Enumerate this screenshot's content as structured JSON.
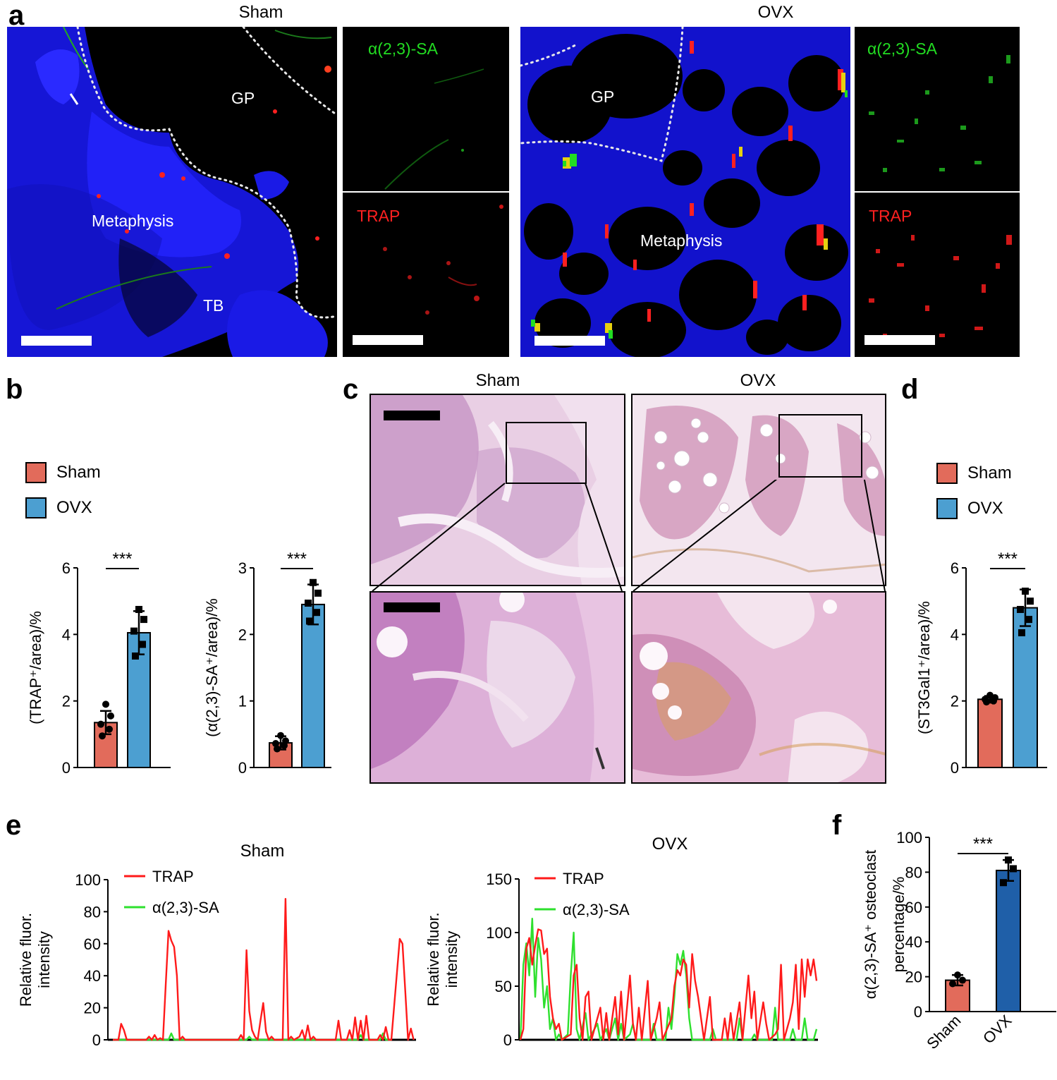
{
  "panel_labels": {
    "a": "a",
    "b": "b",
    "c": "c",
    "d": "d",
    "e": "e",
    "f": "f"
  },
  "panel_a": {
    "sham_title": "Sham",
    "ovx_title": "OVX",
    "sham_overlay": {
      "gp": "GP",
      "metaphysis": "Metaphysis",
      "tb": "TB"
    },
    "ovx_overlay": {
      "gp": "GP",
      "metaphysis": "Metaphysis"
    },
    "channel_sa": "α(2,3)-SA",
    "channel_trap": "TRAP",
    "colors": {
      "dapi": "#1a1aff",
      "sa": "#22dd22",
      "trap": "#ff2020",
      "scalebar": "#ffffff"
    }
  },
  "panel_c": {
    "sham_title": "Sham",
    "ovx_title": "OVX"
  },
  "legend_b": {
    "sham": "Sham",
    "ovx": "OVX"
  },
  "legend_d": {
    "sham": "Sham",
    "ovx": "OVX"
  },
  "colors": {
    "sham_bar": "#e26b5b",
    "ovx_bar": "#4c9fd1",
    "ovx_bar_f": "#1f5fa8",
    "trap_line": "#ff1a1a",
    "sa_line": "#2ee02e"
  },
  "chart_data": [
    {
      "id": "b1",
      "type": "bar",
      "categories": [
        "Sham",
        "OVX"
      ],
      "values": [
        1.35,
        4.05
      ],
      "errors": [
        0.35,
        0.65
      ],
      "points": [
        [
          1.9,
          1.55,
          1.3,
          1.15,
          0.95
        ],
        [
          4.75,
          4.45,
          4.1,
          3.7,
          3.35
        ]
      ],
      "ylabel": "(TRAP⁺/area)/%",
      "ylim": [
        0,
        6
      ],
      "yticks": [
        "0",
        "2",
        "4",
        "6"
      ],
      "significance": "***"
    },
    {
      "id": "b2",
      "type": "bar",
      "categories": [
        "Sham",
        "OVX"
      ],
      "values": [
        0.37,
        2.45
      ],
      "errors": [
        0.1,
        0.3
      ],
      "points": [
        [
          0.48,
          0.4,
          0.36,
          0.33,
          0.28
        ],
        [
          2.78,
          2.62,
          2.47,
          2.33,
          2.2
        ]
      ],
      "ylabel": "(α(2,3)-SA⁺/area)/%",
      "ylim": [
        0,
        3
      ],
      "yticks": [
        "0",
        "1",
        "2",
        "3"
      ],
      "significance": "***"
    },
    {
      "id": "d",
      "type": "bar",
      "categories": [
        "Sham",
        "OVX"
      ],
      "values": [
        2.05,
        4.8
      ],
      "errors": [
        0.1,
        0.55
      ],
      "points": [
        [
          2.17,
          2.1,
          2.05,
          2.0,
          1.97
        ],
        [
          5.3,
          5.0,
          4.75,
          4.45,
          4.05
        ]
      ],
      "ylabel": "(ST3Gal1⁺/area)/%",
      "ylim": [
        0,
        6
      ],
      "yticks": [
        "0",
        "2",
        "4",
        "6"
      ],
      "significance": "***"
    },
    {
      "id": "e_sham",
      "type": "line",
      "title": "Sham",
      "ylabel": "Relative fluor. intensity",
      "ylim": [
        0,
        100
      ],
      "yticks": [
        "0",
        "20",
        "40",
        "60",
        "80",
        "100"
      ],
      "xlim": [
        0,
        100
      ],
      "series": [
        {
          "name": "TRAP",
          "points": [
            [
              0,
              0
            ],
            [
              2,
              0
            ],
            [
              3,
              10
            ],
            [
              4,
              6
            ],
            [
              5,
              0
            ],
            [
              12,
              0
            ],
            [
              13,
              2
            ],
            [
              14,
              0
            ],
            [
              15,
              3
            ],
            [
              16,
              0
            ],
            [
              17,
              1
            ],
            [
              18,
              0
            ],
            [
              19,
              35
            ],
            [
              20,
              68
            ],
            [
              21,
              62
            ],
            [
              22,
              58
            ],
            [
              23,
              40
            ],
            [
              24,
              0
            ],
            [
              25,
              2
            ],
            [
              26,
              0
            ],
            [
              45,
              0
            ],
            [
              46,
              3
            ],
            [
              47,
              0
            ],
            [
              48,
              56
            ],
            [
              49,
              18
            ],
            [
              50,
              6
            ],
            [
              51,
              2
            ],
            [
              52,
              0
            ],
            [
              53,
              12
            ],
            [
              54,
              23
            ],
            [
              55,
              5
            ],
            [
              56,
              0
            ],
            [
              57,
              2
            ],
            [
              58,
              0
            ],
            [
              61,
              0
            ],
            [
              62,
              88
            ],
            [
              63,
              0
            ],
            [
              64,
              2
            ],
            [
              65,
              0
            ],
            [
              67,
              2
            ],
            [
              68,
              6
            ],
            [
              69,
              0
            ],
            [
              70,
              9
            ],
            [
              71,
              0
            ],
            [
              72,
              2
            ],
            [
              73,
              0
            ],
            [
              80,
              0
            ],
            [
              81,
              12
            ],
            [
              82,
              0
            ],
            [
              84,
              0
            ],
            [
              85,
              6
            ],
            [
              86,
              0
            ],
            [
              87,
              14
            ],
            [
              88,
              0
            ],
            [
              89,
              12
            ],
            [
              90,
              0
            ],
            [
              91,
              15
            ],
            [
              92,
              0
            ],
            [
              95,
              0
            ],
            [
              96,
              3
            ],
            [
              97,
              0
            ],
            [
              98,
              8
            ],
            [
              99,
              0
            ],
            [
              100,
              0
            ]
          ]
        },
        {
          "name": "α(2,3)-SA",
          "points": [
            [
              0,
              0
            ],
            [
              20,
              0
            ],
            [
              21,
              4
            ],
            [
              22,
              0
            ],
            [
              48,
              0
            ],
            [
              49,
              2
            ],
            [
              50,
              0
            ],
            [
              88,
              0
            ],
            [
              89,
              3
            ],
            [
              90,
              0
            ],
            [
              96,
              0
            ],
            [
              97,
              4
            ],
            [
              98,
              0
            ],
            [
              100,
              0
            ]
          ]
        }
      ],
      "extra_points": [
        [
          103,
          63
        ],
        [
          104,
          60
        ],
        [
          105,
          30
        ],
        [
          106,
          0
        ],
        [
          107,
          7
        ],
        [
          108,
          0
        ]
      ]
    },
    {
      "id": "e_ovx",
      "type": "line",
      "title": "OVX",
      "ylabel": "Relative fluor. intensity",
      "ylim": [
        0,
        150
      ],
      "yticks": [
        "0",
        "50",
        "100",
        "150"
      ],
      "xlim": [
        0,
        100
      ],
      "series": [
        {
          "name": "TRAP",
          "points": [
            [
              0,
              0
            ],
            [
              1,
              10
            ],
            [
              2,
              85
            ],
            [
              3,
              95
            ],
            [
              4,
              70
            ],
            [
              5,
              88
            ],
            [
              6,
              103
            ],
            [
              7,
              102
            ],
            [
              8,
              80
            ],
            [
              9,
              85
            ],
            [
              10,
              40
            ],
            [
              11,
              20
            ],
            [
              12,
              10
            ],
            [
              13,
              15
            ],
            [
              14,
              0
            ],
            [
              17,
              5
            ],
            [
              18,
              60
            ],
            [
              19,
              70
            ],
            [
              20,
              20
            ],
            [
              21,
              0
            ],
            [
              22,
              40
            ],
            [
              23,
              45
            ],
            [
              24,
              0
            ],
            [
              26,
              20
            ],
            [
              27,
              30
            ],
            [
              28,
              0
            ],
            [
              29,
              25
            ],
            [
              30,
              0
            ],
            [
              32,
              40
            ],
            [
              33,
              5
            ],
            [
              34,
              45
            ],
            [
              35,
              0
            ],
            [
              37,
              60
            ],
            [
              38,
              15
            ],
            [
              39,
              0
            ],
            [
              40,
              30
            ],
            [
              41,
              0
            ],
            [
              43,
              55
            ],
            [
              44,
              0
            ],
            [
              46,
              20
            ],
            [
              47,
              35
            ],
            [
              48,
              0
            ],
            [
              51,
              20
            ],
            [
              52,
              50
            ],
            [
              53,
              65
            ],
            [
              54,
              60
            ],
            [
              55,
              75
            ],
            [
              56,
              70
            ],
            [
              57,
              30
            ],
            [
              58,
              80
            ],
            [
              59,
              55
            ],
            [
              60,
              40
            ],
            [
              61,
              20
            ],
            [
              62,
              0
            ],
            [
              64,
              40
            ],
            [
              65,
              0
            ],
            [
              68,
              0
            ],
            [
              69,
              20
            ],
            [
              70,
              0
            ],
            [
              71,
              25
            ],
            [
              72,
              0
            ],
            [
              74,
              35
            ],
            [
              75,
              0
            ],
            [
              77,
              60
            ],
            [
              78,
              20
            ],
            [
              79,
              45
            ],
            [
              80,
              0
            ],
            [
              82,
              35
            ],
            [
              83,
              15
            ],
            [
              84,
              0
            ],
            [
              86,
              5
            ],
            [
              87,
              10
            ],
            [
              88,
              70
            ],
            [
              89,
              0
            ],
            [
              91,
              20
            ],
            [
              92,
              35
            ],
            [
              93,
              70
            ],
            [
              94,
              10
            ],
            [
              95,
              75
            ],
            [
              96,
              40
            ],
            [
              97,
              75
            ],
            [
              98,
              60
            ],
            [
              99,
              75
            ],
            [
              100,
              55
            ]
          ]
        },
        {
          "name": "α(2,3)-SA",
          "points": [
            [
              0,
              0
            ],
            [
              1,
              70
            ],
            [
              2,
              90
            ],
            [
              3,
              60
            ],
            [
              4,
              113
            ],
            [
              5,
              40
            ],
            [
              6,
              95
            ],
            [
              7,
              75
            ],
            [
              8,
              30
            ],
            [
              9,
              50
            ],
            [
              10,
              10
            ],
            [
              11,
              20
            ],
            [
              12,
              0
            ],
            [
              13,
              5
            ],
            [
              14,
              0
            ],
            [
              16,
              5
            ],
            [
              17,
              60
            ],
            [
              18,
              100
            ],
            [
              19,
              10
            ],
            [
              20,
              0
            ],
            [
              22,
              25
            ],
            [
              23,
              0
            ],
            [
              25,
              10
            ],
            [
              26,
              15
            ],
            [
              27,
              0
            ],
            [
              29,
              10
            ],
            [
              30,
              0
            ],
            [
              32,
              20
            ],
            [
              33,
              0
            ],
            [
              34,
              15
            ],
            [
              35,
              0
            ],
            [
              37,
              5
            ],
            [
              38,
              15
            ],
            [
              39,
              0
            ],
            [
              44,
              0
            ],
            [
              45,
              15
            ],
            [
              46,
              0
            ],
            [
              49,
              0
            ],
            [
              50,
              30
            ],
            [
              51,
              10
            ],
            [
              52,
              40
            ],
            [
              53,
              80
            ],
            [
              54,
              70
            ],
            [
              55,
              83
            ],
            [
              56,
              60
            ],
            [
              57,
              20
            ],
            [
              58,
              0
            ],
            [
              64,
              0
            ],
            [
              65,
              10
            ],
            [
              66,
              0
            ],
            [
              73,
              0
            ],
            [
              74,
              20
            ],
            [
              75,
              0
            ],
            [
              78,
              0
            ],
            [
              79,
              5
            ],
            [
              80,
              0
            ],
            [
              85,
              0
            ],
            [
              86,
              30
            ],
            [
              87,
              0
            ],
            [
              91,
              0
            ],
            [
              92,
              10
            ],
            [
              93,
              0
            ],
            [
              95,
              0
            ],
            [
              96,
              20
            ],
            [
              97,
              0
            ],
            [
              99,
              0
            ],
            [
              100,
              10
            ]
          ]
        }
      ]
    },
    {
      "id": "f",
      "type": "bar",
      "categories": [
        "Sham",
        "OVX"
      ],
      "values": [
        18,
        81
      ],
      "errors": [
        3,
        6
      ],
      "points": [
        [
          21,
          18,
          16
        ],
        [
          87,
          82,
          74
        ]
      ],
      "ylabel": "α(2,3)-SA⁺ osteoclast percentage/%",
      "ylim": [
        0,
        100
      ],
      "yticks": [
        "0",
        "20",
        "40",
        "60",
        "80",
        "100"
      ],
      "significance": "***"
    }
  ]
}
